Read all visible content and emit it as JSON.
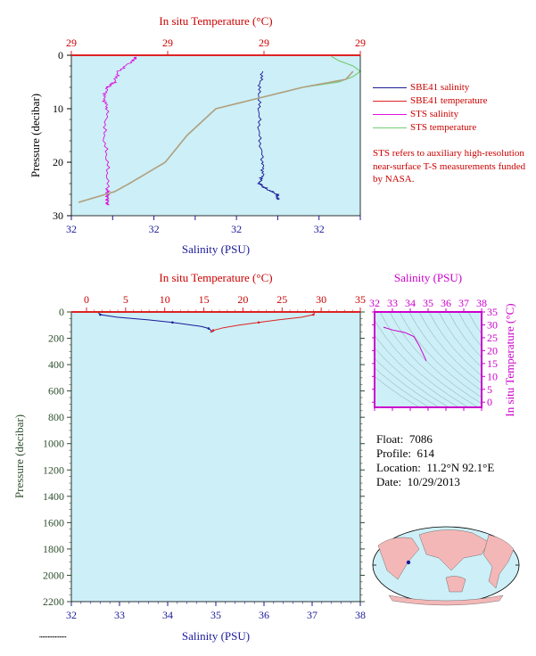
{
  "colors": {
    "salinity": "#1a1a99",
    "temperature": "#dd2222",
    "sts_salinity": "#dd11dd",
    "sts_temperature": "#77cc77",
    "ts_magenta": "#cc00cc",
    "bg": "#cdeff7"
  },
  "top": {
    "title": "In situ Temperature (°C)",
    "temp_ticks": [
      "29",
      "29",
      "29",
      "29"
    ],
    "sal_ticks": [
      "32",
      "32",
      "32",
      "32",
      "32",
      "32",
      "32",
      "32"
    ],
    "xlabel": "Salinity (PSU)",
    "ylabel": "Pressure (decibar)",
    "y_ticks": [
      "0",
      "10",
      "20",
      "30"
    ]
  },
  "legend": {
    "items": [
      "SBE41 salinity",
      "SBE41 temperature",
      "STS salinity",
      "STS temperature"
    ],
    "note": "STS refers to auxiliary high-resolution near-surface T-S measurements funded by NASA."
  },
  "bottom": {
    "title": "In situ Temperature (°C)",
    "temp_ticks": [
      "0",
      "5",
      "10",
      "15",
      "20",
      "25",
      "30",
      "35"
    ],
    "sal_ticks": [
      "32",
      "33",
      "34",
      "35",
      "36",
      "37",
      "38"
    ],
    "xlabel": "Salinity (PSU)",
    "ylabel": "Pressure (decibar)",
    "y_ticks": [
      "0",
      "200",
      "400",
      "600",
      "800",
      "1000",
      "1200",
      "1400",
      "1600",
      "1800",
      "2000",
      "2200"
    ]
  },
  "ts": {
    "title": "Salinity (PSU)",
    "sal_ticks": [
      "32",
      "33",
      "34",
      "35",
      "36",
      "37",
      "38"
    ],
    "temp_ticks": [
      "35",
      "30",
      "25",
      "20",
      "15",
      "10",
      "5",
      "0"
    ],
    "ylabel": "In situ Temperature (°C)"
  },
  "info": {
    "float_label": "Float:",
    "float_value": "7086",
    "profile_label": "Profile:",
    "profile_value": "614",
    "location_label": "Location:",
    "location_value": "11.2°N  92.1°E",
    "date_label": "Date:",
    "date_value": "10/29/2013"
  },
  "chart_data": [
    {
      "type": "line",
      "title": "In situ Temperature (°C)",
      "xlabel": "Salinity (PSU)",
      "ylabel": "Pressure (decibar)",
      "ylim": [
        30,
        0
      ],
      "salinity_range": [
        32,
        32.8
      ],
      "temperature_range": [
        28.9,
        29.3
      ],
      "series": [
        {
          "name": "SBE41 salinity",
          "pressure": [
            3,
            6,
            10,
            15,
            20,
            22.5,
            24,
            25,
            26,
            27
          ],
          "salinity": [
            32.53,
            32.52,
            32.52,
            32.52,
            32.53,
            32.53,
            32.52,
            32.54,
            32.57,
            32.57
          ]
        },
        {
          "name": "SBE41 temperature",
          "pressure": [
            3,
            4.5,
            6,
            10,
            15,
            20,
            24,
            25.5,
            27.5
          ],
          "temperature": [
            29.29,
            29.28,
            29.22,
            29.1,
            29.06,
            29.03,
            28.98,
            28.96,
            28.91
          ]
        },
        {
          "name": "STS salinity",
          "pressure": [
            0.3,
            1,
            3,
            5,
            6,
            8,
            10,
            15,
            20,
            25,
            26,
            27,
            28
          ],
          "salinity": [
            32.18,
            32.17,
            32.13,
            32.12,
            32.1,
            32.09,
            32.1,
            32.09,
            32.1,
            32.1,
            32.1,
            32.1,
            32.1
          ]
        },
        {
          "name": "STS temperature",
          "pressure": [
            0.2,
            1,
            2,
            3,
            4,
            5,
            6,
            10,
            15,
            20,
            24,
            25.5,
            27.5
          ],
          "temperature": [
            29.26,
            29.27,
            29.29,
            29.3,
            29.29,
            29.27,
            29.22,
            29.1,
            29.06,
            29.03,
            28.98,
            28.96,
            28.91
          ]
        }
      ]
    },
    {
      "type": "line",
      "title": "In situ Temperature (°C)",
      "xlabel": "Salinity (PSU)",
      "ylabel": "Pressure (decibar)",
      "ylim": [
        2200,
        0
      ],
      "salinity_range": [
        32,
        38
      ],
      "temperature_range": [
        0,
        35
      ],
      "series": [
        {
          "name": "SBE41 salinity",
          "pressure": [
            2,
            20,
            40,
            60,
            80,
            100,
            110,
            125,
            140,
            155
          ],
          "salinity": [
            32.55,
            32.6,
            32.95,
            33.6,
            34.1,
            34.5,
            34.7,
            34.85,
            34.9,
            34.93
          ]
        },
        {
          "name": "SBE41 temperature",
          "pressure": [
            2,
            20,
            40,
            60,
            80,
            100,
            120,
            140,
            155
          ],
          "temperature": [
            29.2,
            29.0,
            27.5,
            24.5,
            22.0,
            19.5,
            17.5,
            16.2,
            15.8
          ]
        }
      ]
    },
    {
      "type": "line",
      "title": "Salinity (PSU)",
      "xlabel": "Salinity (PSU)",
      "ylabel": "In situ Temperature (°C)",
      "xlim": [
        32,
        38
      ],
      "ylim": [
        -2,
        35
      ],
      "series": [
        {
          "salinity": [
            32.5,
            33.0,
            33.7,
            34.2,
            34.5,
            34.7,
            34.9
          ],
          "temperature": [
            29.1,
            28.0,
            27.0,
            25.5,
            22.0,
            19.0,
            16.0
          ]
        }
      ]
    }
  ]
}
